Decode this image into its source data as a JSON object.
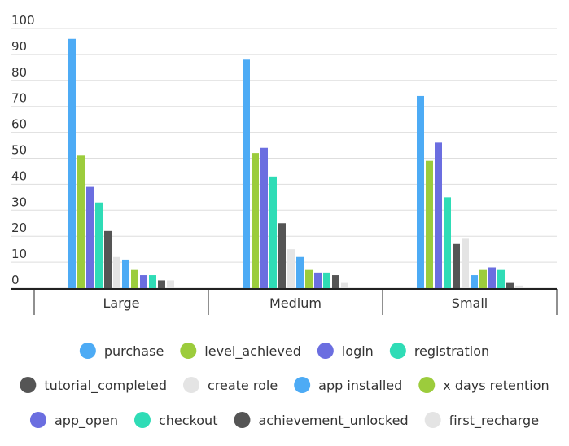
{
  "chart_data": {
    "type": "bar",
    "title": "",
    "xlabel": "",
    "ylabel": "",
    "ylim": [
      0,
      100
    ],
    "yticks": [
      0,
      10,
      20,
      30,
      40,
      50,
      60,
      70,
      80,
      90,
      100
    ],
    "grid": true,
    "legend_position": "bottom",
    "categories": [
      "Large",
      "Medium",
      "Small"
    ],
    "series": [
      {
        "name": "purchase",
        "color": "#4dabf5",
        "values": [
          96,
          88,
          74
        ]
      },
      {
        "name": "level_achieved",
        "color": "#9ccc3c",
        "values": [
          51,
          52,
          49
        ]
      },
      {
        "name": "login",
        "color": "#6b6ee0",
        "values": [
          39,
          54,
          56
        ]
      },
      {
        "name": "registration",
        "color": "#2fdcb6",
        "values": [
          33,
          43,
          35
        ]
      },
      {
        "name": "tutorial_completed",
        "color": "#555555",
        "values": [
          22,
          25,
          17
        ]
      },
      {
        "name": "create role",
        "color": "#e4e4e4",
        "values": [
          12,
          15,
          19
        ]
      },
      {
        "name": "app installed",
        "color": "#4dabf5",
        "values": [
          11,
          12,
          5
        ]
      },
      {
        "name": "x days retention",
        "color": "#9ccc3c",
        "values": [
          7,
          7,
          7
        ]
      },
      {
        "name": "app_open",
        "color": "#6b6ee0",
        "values": [
          5,
          6,
          8
        ]
      },
      {
        "name": "checkout",
        "color": "#2fdcb6",
        "values": [
          5,
          6,
          7
        ]
      },
      {
        "name": "achievement_unlocked",
        "color": "#555555",
        "values": [
          3,
          5,
          2
        ]
      },
      {
        "name": "first_recharge",
        "color": "#e4e4e4",
        "values": [
          3,
          2,
          1
        ]
      }
    ]
  }
}
